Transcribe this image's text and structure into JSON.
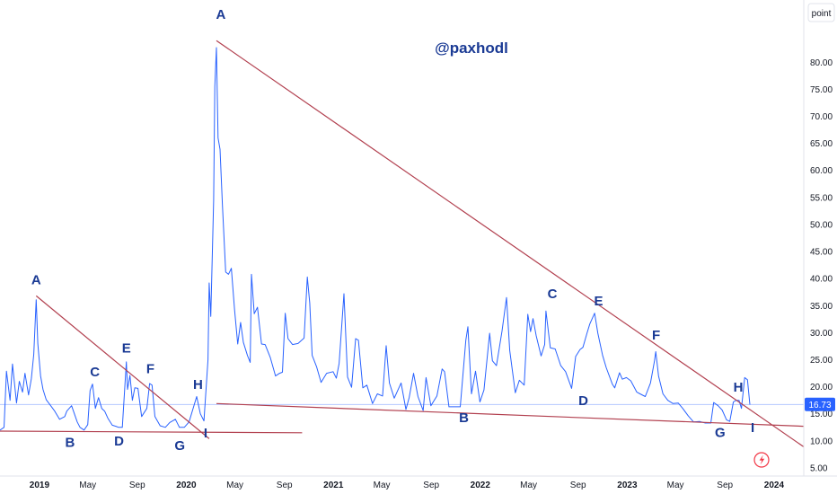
{
  "chart_data": {
    "type": "line",
    "title": "",
    "watermark": "@paxhodl",
    "unit_label": "point",
    "last_value": "16.73",
    "y_axis_position": "right",
    "grid": false,
    "ylim": [
      3.5,
      91.5
    ],
    "xlim": [
      "2018-09-25",
      "2024-03-15"
    ],
    "y_ticks": [
      "5.00",
      "10.00",
      "15.00",
      "20.00",
      "25.00",
      "30.00",
      "35.00",
      "40.00",
      "45.00",
      "50.00",
      "55.00",
      "60.00",
      "65.00",
      "70.00",
      "75.00",
      "80.00"
    ],
    "x_ticks": [
      {
        "date": "2019-01-01",
        "label": "2019"
      },
      {
        "date": "2019-05-01",
        "label": "May"
      },
      {
        "date": "2019-09-01",
        "label": "Sep"
      },
      {
        "date": "2020-01-01",
        "label": "2020"
      },
      {
        "date": "2020-05-01",
        "label": "May"
      },
      {
        "date": "2020-09-01",
        "label": "Sep"
      },
      {
        "date": "2021-01-01",
        "label": "2021"
      },
      {
        "date": "2021-05-01",
        "label": "May"
      },
      {
        "date": "2021-09-01",
        "label": "Sep"
      },
      {
        "date": "2022-01-01",
        "label": "2022"
      },
      {
        "date": "2022-05-01",
        "label": "May"
      },
      {
        "date": "2022-09-01",
        "label": "Sep"
      },
      {
        "date": "2023-01-01",
        "label": "2023"
      },
      {
        "date": "2023-05-01",
        "label": "May"
      },
      {
        "date": "2023-09-01",
        "label": "Sep"
      },
      {
        "date": "2024-01-01",
        "label": "2024"
      }
    ],
    "series": [
      {
        "color": "#2962ff",
        "points": [
          [
            "2018-09-25",
            12.0
          ],
          [
            "2018-10-05",
            12.5
          ],
          [
            "2018-10-11",
            22.9
          ],
          [
            "2018-10-20",
            17.5
          ],
          [
            "2018-10-26",
            24.2
          ],
          [
            "2018-11-05",
            17.0
          ],
          [
            "2018-11-12",
            21.0
          ],
          [
            "2018-11-20",
            19.0
          ],
          [
            "2018-11-26",
            22.5
          ],
          [
            "2018-12-05",
            18.5
          ],
          [
            "2018-12-12",
            21.5
          ],
          [
            "2018-12-18",
            26.0
          ],
          [
            "2018-12-24",
            36.1
          ],
          [
            "2018-12-28",
            28.0
          ],
          [
            "2019-01-04",
            22.0
          ],
          [
            "2019-01-10",
            19.5
          ],
          [
            "2019-01-18",
            17.6
          ],
          [
            "2019-01-28",
            16.6
          ],
          [
            "2019-02-08",
            15.5
          ],
          [
            "2019-02-20",
            14.0
          ],
          [
            "2019-03-05",
            14.5
          ],
          [
            "2019-03-10",
            15.5
          ],
          [
            "2019-03-22",
            16.5
          ],
          [
            "2019-04-05",
            13.5
          ],
          [
            "2019-04-12",
            12.5
          ],
          [
            "2019-04-22",
            12.0
          ],
          [
            "2019-05-01",
            13.0
          ],
          [
            "2019-05-07",
            19.3
          ],
          [
            "2019-05-13",
            20.5
          ],
          [
            "2019-05-20",
            16.0
          ],
          [
            "2019-05-28",
            18.0
          ],
          [
            "2019-06-05",
            16.0
          ],
          [
            "2019-06-12",
            15.5
          ],
          [
            "2019-06-20",
            14.2
          ],
          [
            "2019-07-01",
            12.9
          ],
          [
            "2019-07-10",
            12.7
          ],
          [
            "2019-07-17",
            12.5
          ],
          [
            "2019-07-26",
            12.5
          ],
          [
            "2019-08-05",
            24.6
          ],
          [
            "2019-08-08",
            19.5
          ],
          [
            "2019-08-14",
            22.1
          ],
          [
            "2019-08-20",
            17.5
          ],
          [
            "2019-08-26",
            19.8
          ],
          [
            "2019-09-03",
            19.7
          ],
          [
            "2019-09-12",
            14.5
          ],
          [
            "2019-09-25",
            16.0
          ],
          [
            "2019-10-02",
            20.6
          ],
          [
            "2019-10-08",
            20.3
          ],
          [
            "2019-10-15",
            14.5
          ],
          [
            "2019-10-28",
            12.8
          ],
          [
            "2019-11-10",
            12.5
          ],
          [
            "2019-11-21",
            13.4
          ],
          [
            "2019-12-05",
            14.0
          ],
          [
            "2019-12-15",
            12.5
          ],
          [
            "2019-12-27",
            12.5
          ],
          [
            "2020-01-08",
            13.5
          ],
          [
            "2020-01-27",
            18.2
          ],
          [
            "2020-02-05",
            15.0
          ],
          [
            "2020-02-14",
            13.7
          ],
          [
            "2020-02-24",
            25.0
          ],
          [
            "2020-02-27",
            39.2
          ],
          [
            "2020-03-02",
            33.0
          ],
          [
            "2020-03-09",
            54.5
          ],
          [
            "2020-03-12",
            75.5
          ],
          [
            "2020-03-16",
            82.7
          ],
          [
            "2020-03-20",
            66.0
          ],
          [
            "2020-03-25",
            63.9
          ],
          [
            "2020-03-31",
            53.5
          ],
          [
            "2020-04-08",
            41.2
          ],
          [
            "2020-04-15",
            40.8
          ],
          [
            "2020-04-22",
            41.9
          ],
          [
            "2020-04-30",
            34.2
          ],
          [
            "2020-05-08",
            27.9
          ],
          [
            "2020-05-15",
            31.9
          ],
          [
            "2020-05-22",
            28.2
          ],
          [
            "2020-06-01",
            25.8
          ],
          [
            "2020-06-08",
            24.5
          ],
          [
            "2020-06-11",
            40.8
          ],
          [
            "2020-06-18",
            33.5
          ],
          [
            "2020-06-26",
            34.7
          ],
          [
            "2020-07-06",
            27.9
          ],
          [
            "2020-07-15",
            27.8
          ],
          [
            "2020-07-28",
            25.4
          ],
          [
            "2020-08-10",
            22.0
          ],
          [
            "2020-08-20",
            22.5
          ],
          [
            "2020-08-27",
            22.7
          ],
          [
            "2020-09-03",
            33.6
          ],
          [
            "2020-09-10",
            28.9
          ],
          [
            "2020-09-21",
            27.8
          ],
          [
            "2020-10-05",
            28.0
          ],
          [
            "2020-10-20",
            29.0
          ],
          [
            "2020-10-28",
            40.3
          ],
          [
            "2020-11-03",
            35.5
          ],
          [
            "2020-11-09",
            25.8
          ],
          [
            "2020-11-20",
            23.7
          ],
          [
            "2020-12-01",
            20.8
          ],
          [
            "2020-12-15",
            22.5
          ],
          [
            "2020-12-31",
            22.8
          ],
          [
            "2021-01-08",
            21.6
          ],
          [
            "2021-01-15",
            24.3
          ],
          [
            "2021-01-27",
            37.2
          ],
          [
            "2021-02-05",
            21.8
          ],
          [
            "2021-02-15",
            19.9
          ],
          [
            "2021-02-25",
            28.9
          ],
          [
            "2021-03-04",
            28.6
          ],
          [
            "2021-03-15",
            19.8
          ],
          [
            "2021-03-25",
            20.3
          ],
          [
            "2021-04-08",
            16.9
          ],
          [
            "2021-04-20",
            18.7
          ],
          [
            "2021-05-03",
            18.3
          ],
          [
            "2021-05-12",
            27.6
          ],
          [
            "2021-05-20",
            20.7
          ],
          [
            "2021-06-01",
            17.9
          ],
          [
            "2021-06-18",
            20.7
          ],
          [
            "2021-06-30",
            15.8
          ],
          [
            "2021-07-08",
            18.0
          ],
          [
            "2021-07-19",
            22.5
          ],
          [
            "2021-07-30",
            18.2
          ],
          [
            "2021-08-12",
            15.6
          ],
          [
            "2021-08-19",
            21.7
          ],
          [
            "2021-08-31",
            16.5
          ],
          [
            "2021-09-15",
            18.3
          ],
          [
            "2021-09-28",
            23.3
          ],
          [
            "2021-10-04",
            22.8
          ],
          [
            "2021-10-15",
            16.3
          ],
          [
            "2021-10-29",
            16.3
          ],
          [
            "2021-11-12",
            16.3
          ],
          [
            "2021-11-26",
            28.6
          ],
          [
            "2021-12-01",
            31.1
          ],
          [
            "2021-12-10",
            18.7
          ],
          [
            "2021-12-20",
            22.9
          ],
          [
            "2021-12-31",
            17.2
          ],
          [
            "2022-01-10",
            19.4
          ],
          [
            "2022-01-24",
            29.9
          ],
          [
            "2022-01-31",
            24.8
          ],
          [
            "2022-02-10",
            23.9
          ],
          [
            "2022-02-24",
            30.3
          ],
          [
            "2022-03-07",
            36.5
          ],
          [
            "2022-03-15",
            26.7
          ],
          [
            "2022-03-29",
            18.9
          ],
          [
            "2022-04-08",
            21.2
          ],
          [
            "2022-04-20",
            20.3
          ],
          [
            "2022-04-29",
            33.4
          ],
          [
            "2022-05-06",
            30.2
          ],
          [
            "2022-05-12",
            32.6
          ],
          [
            "2022-05-20",
            29.4
          ],
          [
            "2022-06-01",
            25.7
          ],
          [
            "2022-06-10",
            27.8
          ],
          [
            "2022-06-13",
            34.0
          ],
          [
            "2022-06-24",
            27.2
          ],
          [
            "2022-07-06",
            27.0
          ],
          [
            "2022-07-20",
            23.9
          ],
          [
            "2022-08-01",
            22.8
          ],
          [
            "2022-08-16",
            19.7
          ],
          [
            "2022-08-26",
            25.6
          ],
          [
            "2022-09-06",
            26.9
          ],
          [
            "2022-09-13",
            27.3
          ],
          [
            "2022-09-23",
            29.9
          ],
          [
            "2022-09-30",
            31.6
          ],
          [
            "2022-10-12",
            33.6
          ],
          [
            "2022-10-20",
            29.9
          ],
          [
            "2022-11-01",
            25.8
          ],
          [
            "2022-11-10",
            23.5
          ],
          [
            "2022-11-25",
            20.5
          ],
          [
            "2022-12-01",
            19.8
          ],
          [
            "2022-12-13",
            22.6
          ],
          [
            "2022-12-20",
            21.4
          ],
          [
            "2022-12-30",
            21.7
          ],
          [
            "2023-01-10",
            21.1
          ],
          [
            "2023-01-25",
            19.0
          ],
          [
            "2023-02-02",
            18.7
          ],
          [
            "2023-02-15",
            18.2
          ],
          [
            "2023-02-28",
            20.7
          ],
          [
            "2023-03-10",
            24.8
          ],
          [
            "2023-03-13",
            26.5
          ],
          [
            "2023-03-20",
            22.0
          ],
          [
            "2023-03-31",
            18.7
          ],
          [
            "2023-04-12",
            17.5
          ],
          [
            "2023-04-25",
            16.9
          ],
          [
            "2023-05-08",
            17.0
          ],
          [
            "2023-05-19",
            16.0
          ],
          [
            "2023-06-02",
            14.6
          ],
          [
            "2023-06-15",
            13.5
          ],
          [
            "2023-06-30",
            13.6
          ],
          [
            "2023-07-14",
            13.3
          ],
          [
            "2023-07-28",
            13.3
          ],
          [
            "2023-08-04",
            17.1
          ],
          [
            "2023-08-15",
            16.5
          ],
          [
            "2023-08-25",
            15.7
          ],
          [
            "2023-09-05",
            13.9
          ],
          [
            "2023-09-13",
            13.6
          ],
          [
            "2023-09-22",
            17.2
          ],
          [
            "2023-09-29",
            17.5
          ],
          [
            "2023-10-06",
            17.5
          ],
          [
            "2023-10-12",
            16.0
          ],
          [
            "2023-10-20",
            21.7
          ],
          [
            "2023-10-27",
            21.3
          ],
          [
            "2023-11-02",
            16.7
          ]
        ]
      }
    ],
    "trendlines": [
      {
        "from": [
          "2018-12-24",
          36.8
        ],
        "to": [
          "2020-02-27",
          10.4
        ],
        "color": "#b2404f"
      },
      {
        "from": [
          "2018-09-25",
          11.8
        ],
        "to": [
          "2020-10-15",
          11.5
        ],
        "color": "#b2404f"
      },
      {
        "from": [
          "2020-03-16",
          84.0
        ],
        "to": [
          "2024-03-15",
          8.9
        ],
        "color": "#b2404f"
      },
      {
        "from": [
          "2020-03-16",
          16.9
        ],
        "to": [
          "2024-03-15",
          12.7
        ],
        "color": "#b2404f"
      }
    ],
    "price_line": {
      "value": 16.73,
      "color": "#2962ff"
    },
    "wave_labels": [
      {
        "text": "A",
        "date": "2018-12-24",
        "value": 39.6
      },
      {
        "text": "B",
        "date": "2019-03-18",
        "value": 9.6
      },
      {
        "text": "C",
        "date": "2019-05-19",
        "value": 22.6
      },
      {
        "text": "D",
        "date": "2019-07-18",
        "value": 9.8
      },
      {
        "text": "E",
        "date": "2019-08-05",
        "value": 27.0
      },
      {
        "text": "F",
        "date": "2019-10-04",
        "value": 23.2
      },
      {
        "text": "G",
        "date": "2019-12-16",
        "value": 9.0
      },
      {
        "text": "H",
        "date": "2020-01-30",
        "value": 20.3
      },
      {
        "text": "I",
        "date": "2020-02-18",
        "value": 11.3
      },
      {
        "text": "A",
        "date": "2020-03-27",
        "value": 88.7
      },
      {
        "text": "B",
        "date": "2021-11-21",
        "value": 14.1
      },
      {
        "text": "C",
        "date": "2022-06-29",
        "value": 37.0
      },
      {
        "text": "D",
        "date": "2022-09-14",
        "value": 17.3
      },
      {
        "text": "E",
        "date": "2022-10-22",
        "value": 35.7
      },
      {
        "text": "F",
        "date": "2023-03-14",
        "value": 29.4
      },
      {
        "text": "G",
        "date": "2023-08-20",
        "value": 11.4
      },
      {
        "text": "H",
        "date": "2023-10-04",
        "value": 19.8
      },
      {
        "text": "I",
        "date": "2023-11-09",
        "value": 12.3
      }
    ]
  }
}
